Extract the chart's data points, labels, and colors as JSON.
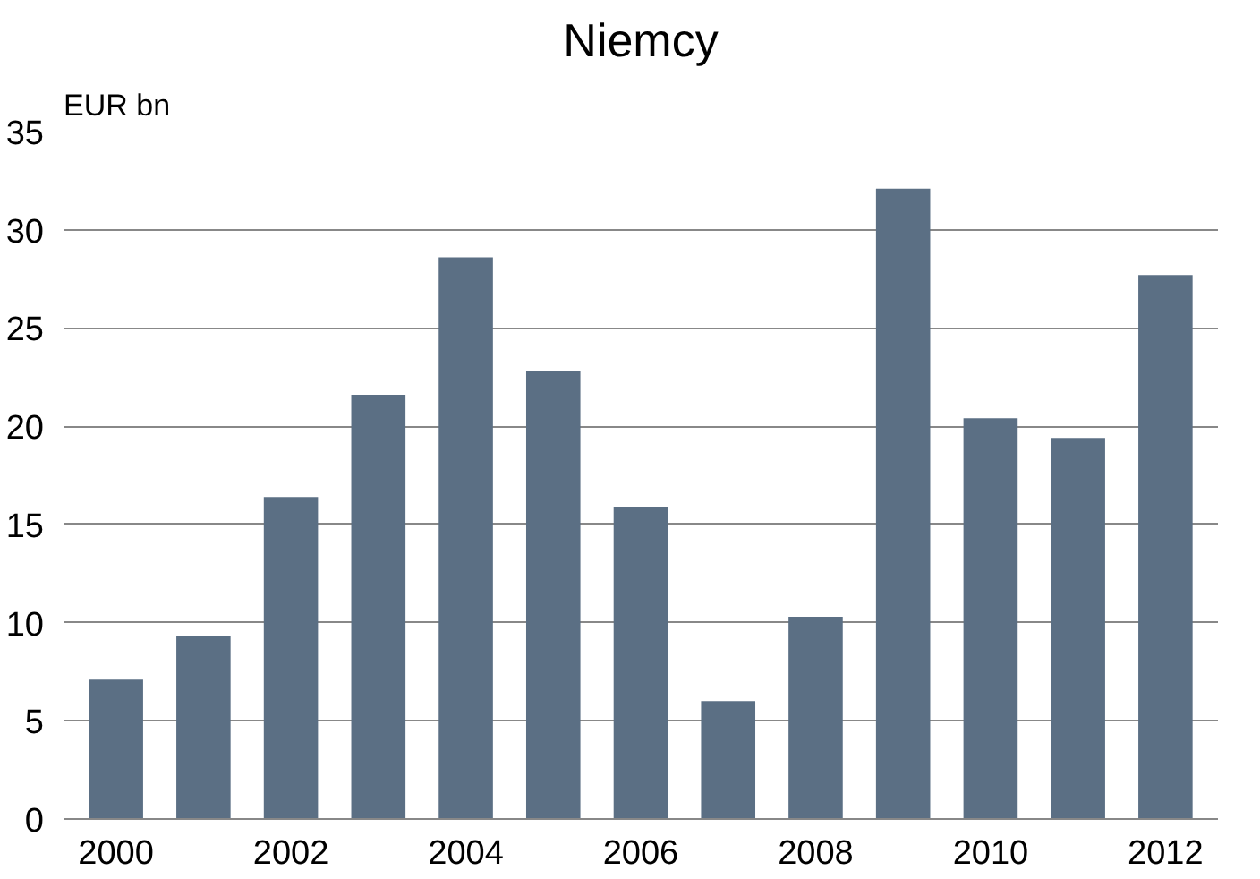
{
  "chart_data": {
    "type": "bar",
    "title": "Niemcy",
    "ylabel": "EUR bn",
    "x": [
      2000,
      2001,
      2002,
      2003,
      2004,
      2005,
      2006,
      2007,
      2008,
      2009,
      2010,
      2011,
      2012
    ],
    "values": [
      7.1,
      9.3,
      16.4,
      21.6,
      28.6,
      22.8,
      15.9,
      6.0,
      10.3,
      32.1,
      20.4,
      19.4,
      27.7
    ],
    "color": "#5b6f84",
    "xlim": [
      1999.4,
      2012.6
    ],
    "xticks": [
      2000,
      2002,
      2004,
      2006,
      2008,
      2010,
      2012
    ],
    "ylim": [
      0,
      35
    ],
    "yticks": [
      0,
      5,
      10,
      15,
      20,
      25,
      30,
      35
    ],
    "grid": "y"
  }
}
